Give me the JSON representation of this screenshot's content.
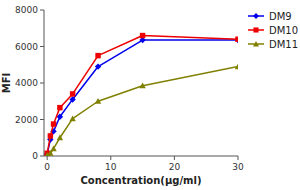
{
  "chart_data": {
    "type": "line",
    "xlabel": "Concentration(μg/ml)",
    "ylabel": "MFI",
    "x": [
      0.0,
      0.5,
      1.0,
      2.0,
      4.0,
      8.0,
      15.0,
      30.0
    ],
    "series": [
      {
        "name": "DM9",
        "color": "#0000ee",
        "marker": "diamond",
        "values": [
          100,
          900,
          1350,
          2150,
          3100,
          4900,
          6350,
          6350
        ]
      },
      {
        "name": "DM10",
        "color": "#ee0000",
        "marker": "square",
        "values": [
          150,
          1100,
          1750,
          2650,
          3400,
          5500,
          6600,
          6400
        ]
      },
      {
        "name": "DM11",
        "color": "#808000",
        "marker": "triangle",
        "values": [
          50,
          150,
          400,
          1000,
          2050,
          3000,
          3850,
          4900
        ]
      }
    ],
    "xlim": [
      -0.5,
      30
    ],
    "ylim": [
      0,
      8000
    ],
    "xticks": [
      0,
      10,
      20,
      30
    ],
    "yticks": [
      0,
      2000,
      4000,
      6000,
      8000
    ],
    "grid": false,
    "legend": "right"
  }
}
